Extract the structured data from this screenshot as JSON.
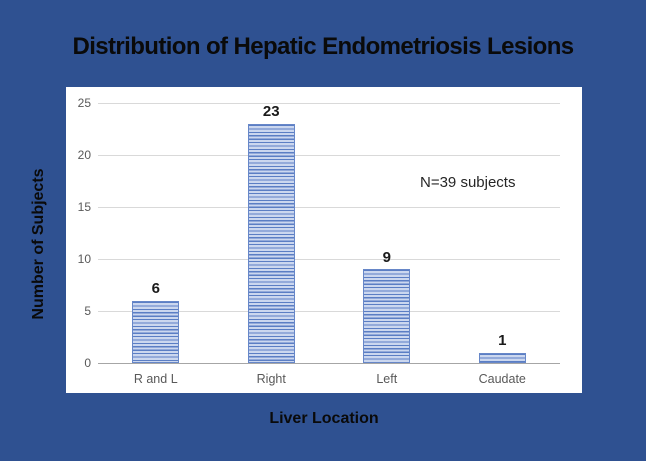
{
  "slide": {
    "title": "Distribution of Hepatic Endometriosis Lesions",
    "background_color": "#2F5191",
    "panel_background": "#FFFFFF"
  },
  "chart_data": {
    "type": "bar",
    "title": "Distribution of Hepatic Endometriosis Lesions",
    "categories": [
      "R and L",
      "Right",
      "Left",
      "Caudate"
    ],
    "values": [
      6,
      23,
      9,
      1
    ],
    "xlabel": "Liver Location",
    "ylabel": "Number of Subjects",
    "ylim": [
      0,
      25
    ],
    "yticks": [
      0,
      5,
      10,
      15,
      20,
      25
    ],
    "grid": true,
    "legend": "none",
    "annotation": "N=39 subjects",
    "colors": {
      "bar_stripe_dark": "#5B7EC4",
      "bar_stripe_light": "#CBD7EF",
      "bar_border": "#6787C8",
      "gridline": "#D9D9D9",
      "axis_line": "#A6A6A6",
      "tick_label": "#595959",
      "value_label": "#1A1A1A",
      "slide_background": "#2F5191",
      "text": "#0A0A0A"
    }
  }
}
